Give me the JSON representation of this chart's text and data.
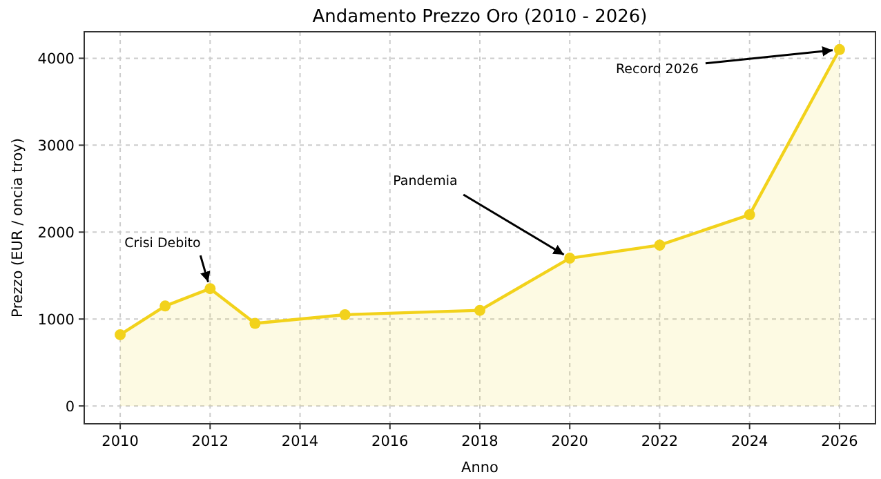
{
  "chart_data": {
    "type": "area",
    "title": "Andamento Prezzo Oro (2010 - 2026)",
    "xlabel": "Anno",
    "ylabel": "Prezzo (EUR / oncia troy)",
    "x": [
      2010,
      2011,
      2012,
      2013,
      2015,
      2018,
      2020,
      2022,
      2024,
      2026
    ],
    "series": [
      {
        "color": "#f2d21b",
        "values": [
          820,
          1150,
          1350,
          950,
          1050,
          1100,
          1700,
          1850,
          2200,
          4100
        ]
      }
    ],
    "xlim": [
      2009.2,
      2026.8
    ],
    "xticks": [
      2010,
      2012,
      2014,
      2016,
      2018,
      2020,
      2022,
      2024,
      2026
    ],
    "ylim": [
      -205,
      4305
    ],
    "yticks": [
      0,
      1000,
      2000,
      3000,
      4000
    ],
    "grid": true,
    "marker": "circle",
    "line_style": "solid",
    "annotations": [
      {
        "text": "Crisi Debito",
        "x": 2012,
        "y": 1350
      },
      {
        "text": "Pandemia",
        "x": 2020,
        "y": 1700
      },
      {
        "text": "Record 2026",
        "x": 2026,
        "y": 4100
      }
    ]
  }
}
